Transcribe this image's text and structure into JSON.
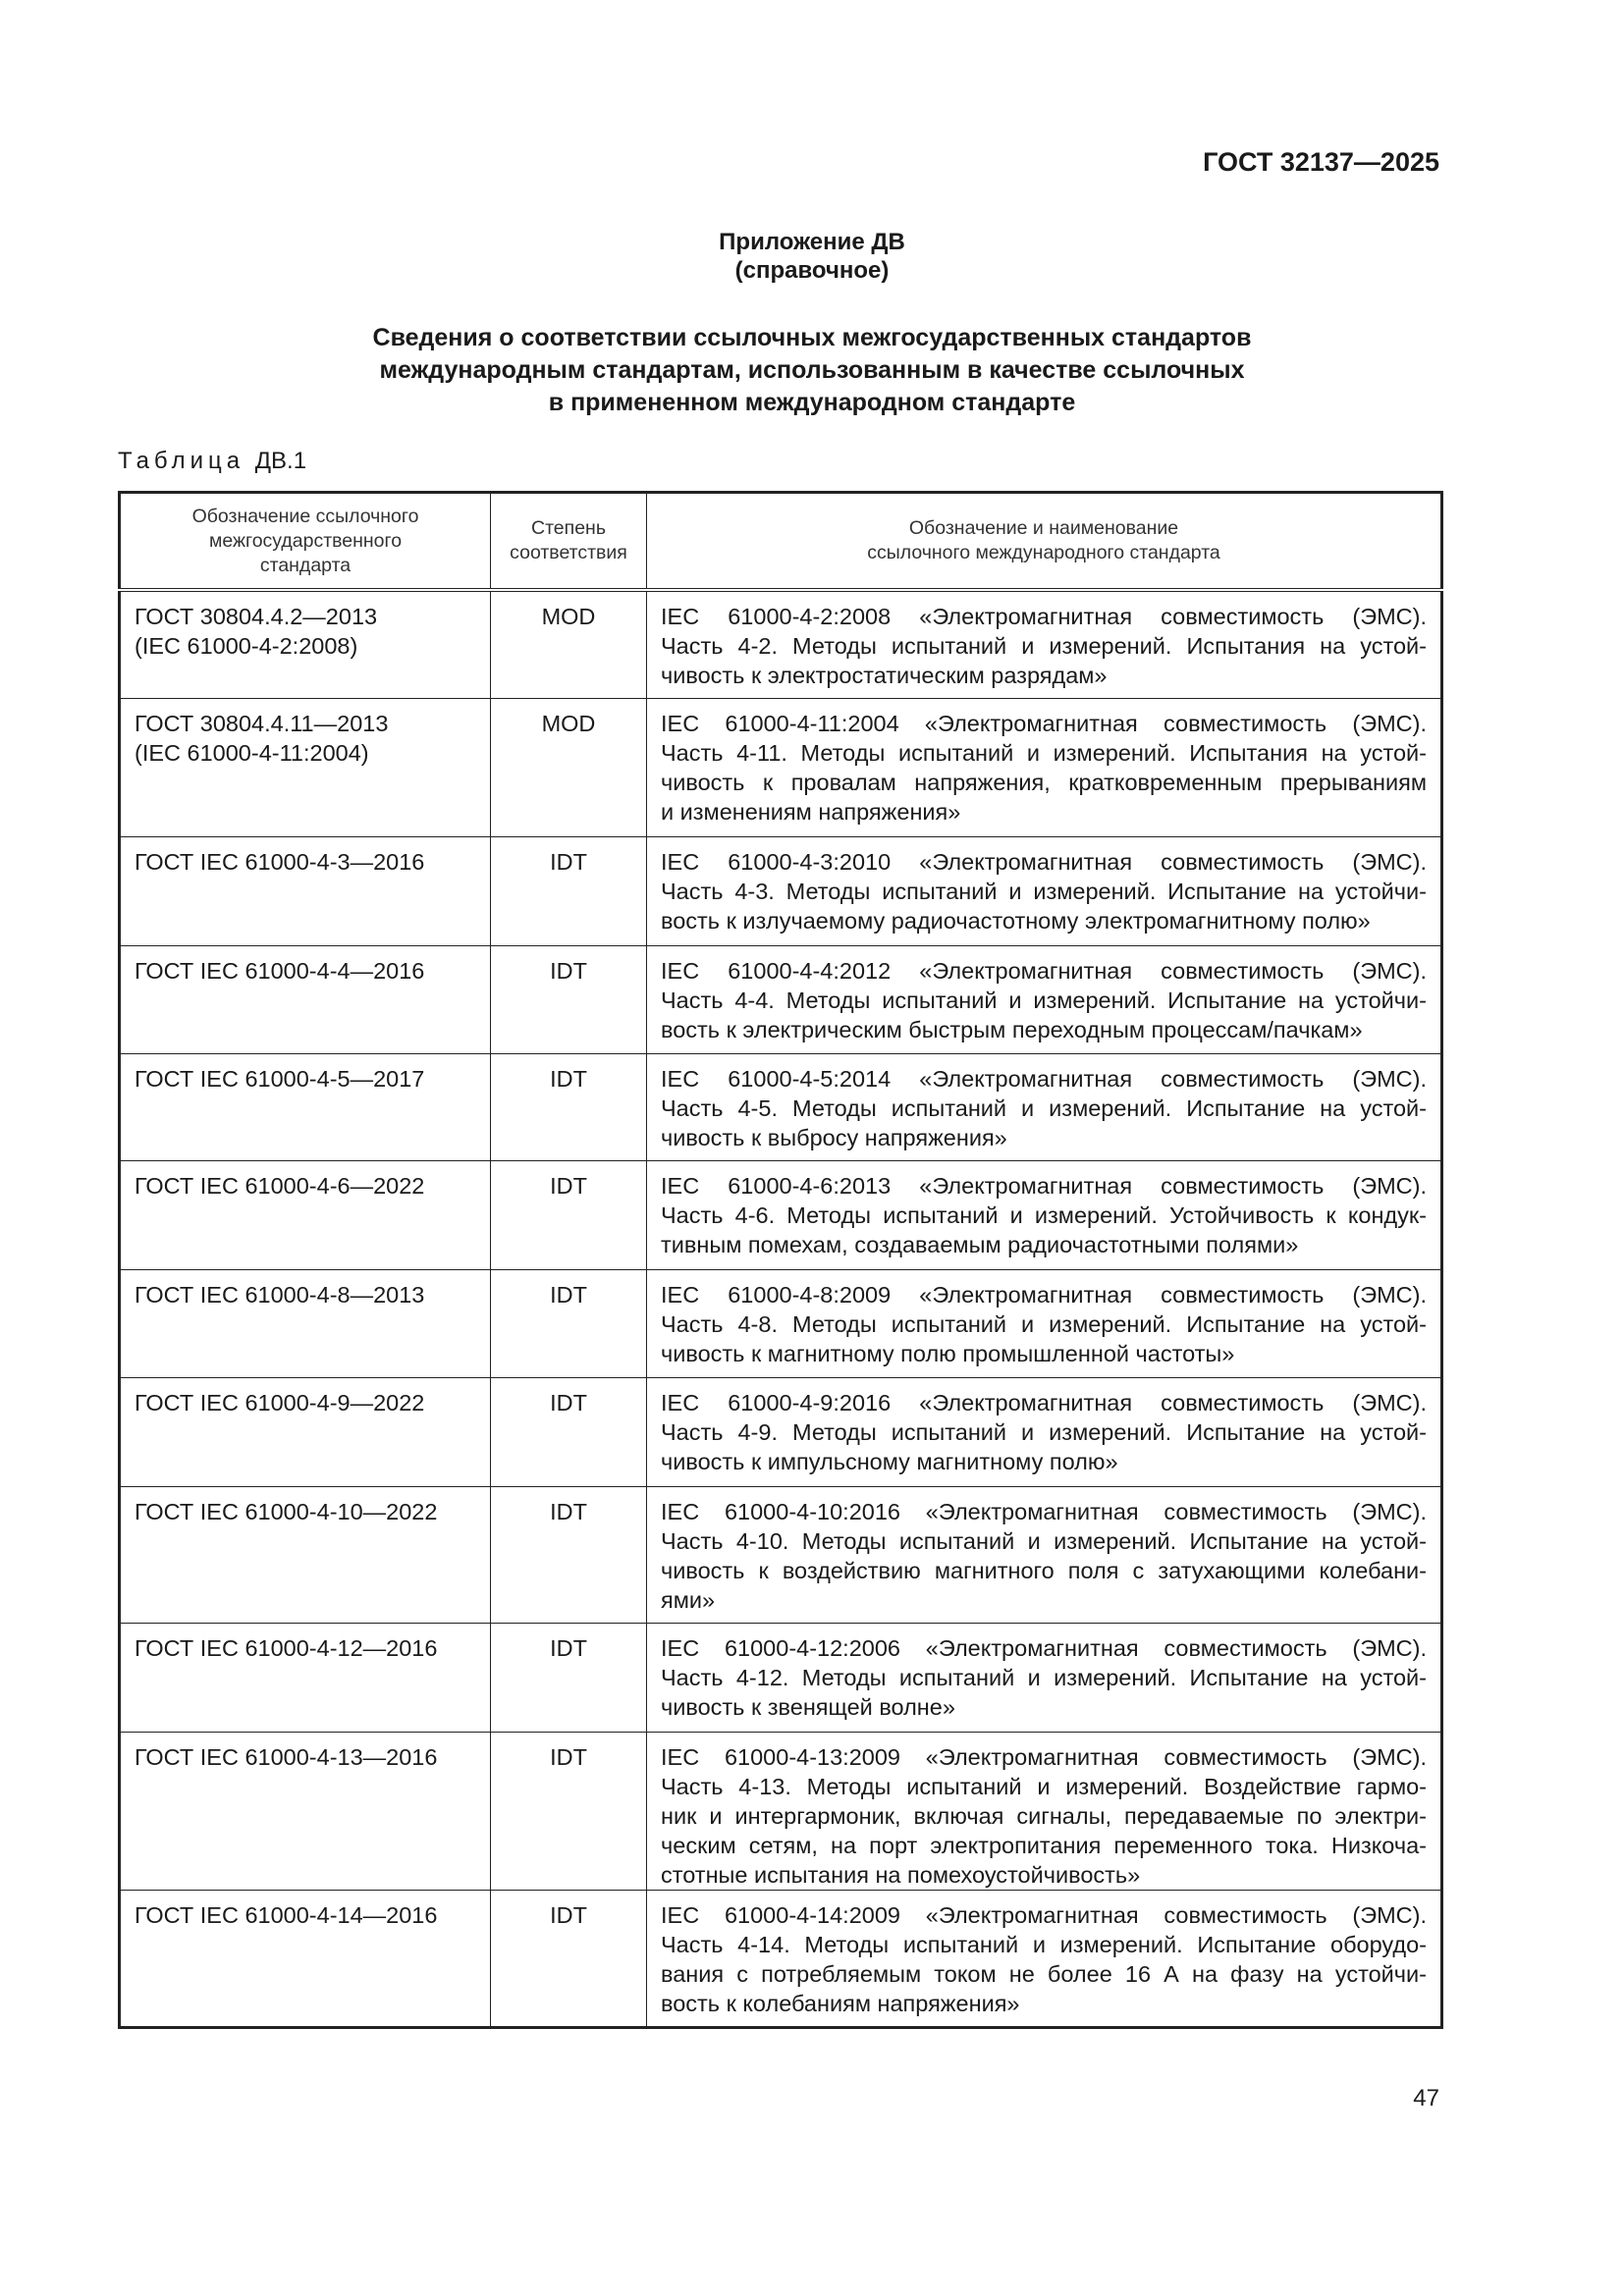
{
  "header": {
    "doc_id": "ГОСТ 32137—2025"
  },
  "appendix": {
    "title": "Приложение ДВ",
    "subtitle": "(справочное)"
  },
  "heading": [
    "Сведения о соответствии ссылочных межгосударственных стандартов",
    "международным стандартам, использованным в качестве ссылочных",
    "в примененном международном стандарте"
  ],
  "table_caption": {
    "word": "Таблица",
    "number": "ДВ.1"
  },
  "table": {
    "columns": [
      "Обозначение ссылочного межгосударственного стандарта",
      "Степень соответствия",
      "Обозначение и наименование ссылочного международного стандарта"
    ],
    "column_lines": [
      [
        "Обозначение ссылочного",
        "межгосударственного",
        "стандарта"
      ],
      [
        "Степень",
        "соответствия"
      ],
      [
        "Обозначение и наименование",
        "ссылочного международного стандарта"
      ]
    ],
    "rows": [
      {
        "gost": [
          "ГОСТ 30804.4.2—2013",
          "(IEC 61000-4-2:2008)"
        ],
        "degree": "MOD",
        "intl": [
          "IEC 61000-4-2:2008 «Электромагнитная совместимость (ЭМС).",
          "Часть 4-2. Методы испытаний и измерений. Испытания на устой-",
          "чивость к электростатическим разрядам»"
        ]
      },
      {
        "gost": [
          "ГОСТ 30804.4.11—2013",
          "(IEC 61000-4-11:2004)"
        ],
        "degree": "MOD",
        "intl": [
          "IEC 61000-4-11:2004 «Электромагнитная совместимость (ЭМС).",
          "Часть 4-11. Методы испытаний и измерений. Испытания на устой-",
          "чивость к провалам напряжения, кратковременным прерываниям",
          "и изменениям напряжения»"
        ]
      },
      {
        "gost": [
          "ГОСТ IEC 61000-4-3—2016"
        ],
        "degree": "IDT",
        "intl": [
          "IEC 61000-4-3:2010 «Электромагнитная совместимость (ЭМС).",
          "Часть 4-3. Методы испытаний и измерений. Испытание на устойчи-",
          "вость к излучаемому радиочастотному электромагнитному полю»"
        ]
      },
      {
        "gost": [
          "ГОСТ IEC 61000-4-4—2016"
        ],
        "degree": "IDT",
        "intl": [
          "IEC 61000-4-4:2012 «Электромагнитная совместимость (ЭМС).",
          "Часть 4-4. Методы испытаний и измерений. Испытание на устойчи-",
          "вость к электрическим быстрым переходным процессам/пачкам»"
        ]
      },
      {
        "gost": [
          "ГОСТ IEC 61000-4-5—2017"
        ],
        "degree": "IDT",
        "intl": [
          "IEC 61000-4-5:2014 «Электромагнитная совместимость (ЭМС).",
          "Часть 4-5. Методы испытаний и измерений. Испытание на устой-",
          "чивость к выбросу напряжения»"
        ]
      },
      {
        "gost": [
          "ГОСТ IEC 61000-4-6—2022"
        ],
        "degree": "IDT",
        "intl": [
          "IEC 61000-4-6:2013 «Электромагнитная совместимость (ЭМС).",
          "Часть 4-6. Методы испытаний и измерений. Устойчивость к кондук-",
          "тивным помехам, создаваемым радиочастотными полями»"
        ]
      },
      {
        "gost": [
          "ГОСТ IEC 61000-4-8—2013"
        ],
        "degree": "IDT",
        "intl": [
          "IEC 61000-4-8:2009 «Электромагнитная совместимость (ЭМС).",
          "Часть 4-8. Методы испытаний и измерений. Испытание на устой-",
          "чивость к магнитному полю промышленной частоты»"
        ]
      },
      {
        "gost": [
          "ГОСТ IEC 61000-4-9—2022"
        ],
        "degree": "IDT",
        "intl": [
          "IEC 61000-4-9:2016 «Электромагнитная совместимость (ЭМС).",
          "Часть 4-9. Методы испытаний и измерений. Испытание на устой-",
          "чивость к импульсному магнитному полю»"
        ]
      },
      {
        "gost": [
          "ГОСТ IEC 61000-4-10—2022"
        ],
        "degree": "IDT",
        "intl": [
          "IEC 61000-4-10:2016 «Электромагнитная совместимость (ЭМС).",
          "Часть 4-10. Методы испытаний и измерений. Испытание на устой-",
          "чивость к воздействию магнитного поля с затухающими колебани-",
          "ями»"
        ]
      },
      {
        "gost": [
          "ГОСТ IEC 61000-4-12—2016"
        ],
        "degree": "IDT",
        "intl": [
          "IEC 61000-4-12:2006 «Электромагнитная совместимость (ЭМС).",
          "Часть 4-12. Методы испытаний и измерений. Испытание на устой-",
          "чивость к звенящей волне»"
        ]
      },
      {
        "gost": [
          "ГОСТ IEC 61000-4-13—2016"
        ],
        "degree": "IDT",
        "intl": [
          "IEC 61000-4-13:2009 «Электромагнитная совместимость (ЭМС).",
          "Часть 4-13. Методы испытаний и измерений. Воздействие гармо-",
          "ник и интергармоник, включая сигналы, передаваемые по электри-",
          "ческим сетям, на порт электропитания переменного тока. Низкоча-",
          "стотные испытания на помехоустойчивость»"
        ]
      },
      {
        "gost": [
          "ГОСТ IEC 61000-4-14—2016"
        ],
        "degree": "IDT",
        "intl": [
          "IEC 61000-4-14:2009 «Электромагнитная совместимость (ЭМС).",
          "Часть 4-14. Методы испытаний и измерений. Испытание оборудо-",
          "вания с потребляемым током не более 16 А на фазу на устойчи-",
          "вость к колебаниям напряжения»"
        ]
      }
    ]
  },
  "footer": {
    "page_number": "47"
  }
}
